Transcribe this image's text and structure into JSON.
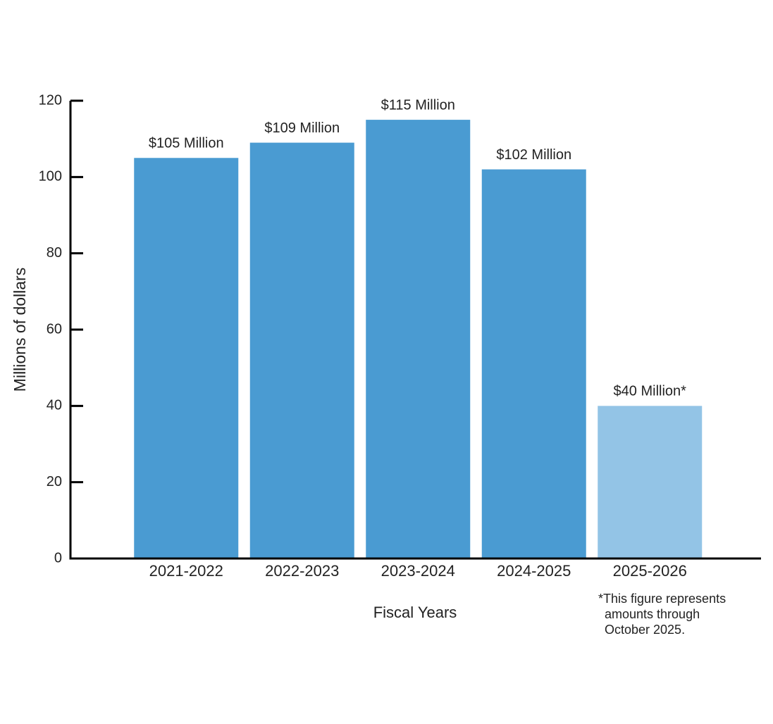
{
  "chart_data": {
    "type": "bar",
    "categories": [
      "2021-2022",
      "2022-2023",
      "2023-2024",
      "2024-2025",
      "2025-2026"
    ],
    "values": [
      105,
      109,
      115,
      102,
      40
    ],
    "value_labels": [
      "$105 Million",
      "$109 Million",
      "$115 Million",
      "$102 Million",
      "$40 Million*"
    ],
    "colors": [
      "#4a9bd2",
      "#4a9bd2",
      "#4a9bd2",
      "#4a9bd2",
      "#93c4e6"
    ],
    "ylim": [
      0,
      120
    ],
    "yticks": [
      0,
      20,
      40,
      60,
      80,
      100,
      120
    ],
    "y_label": "Millions of dollars",
    "x_label": "Fiscal Years",
    "footnote": [
      "*This figure represents",
      "amounts through",
      "October 2025."
    ]
  }
}
